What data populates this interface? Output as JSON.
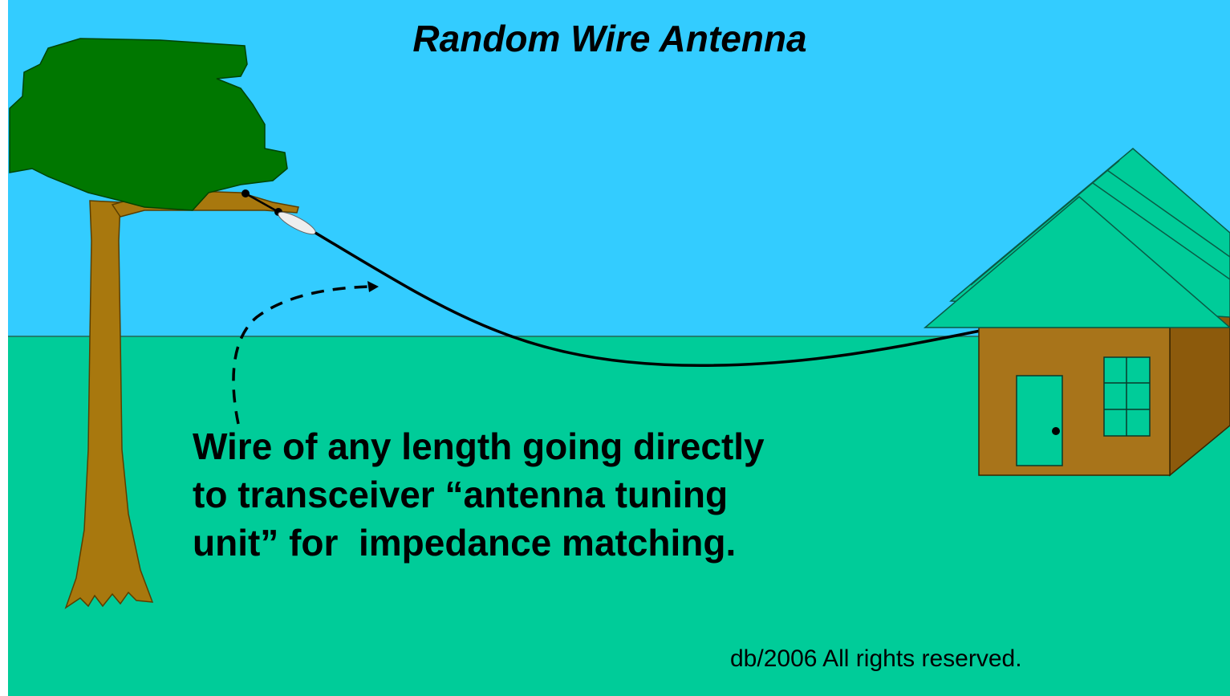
{
  "title": "Random Wire Antenna",
  "caption": {
    "lines": [
      "Wire of any length going directly",
      "to transceiver “antenna tuning",
      "unit” for  impedance matching."
    ]
  },
  "copyright": "db/2006 All rights reserved."
}
